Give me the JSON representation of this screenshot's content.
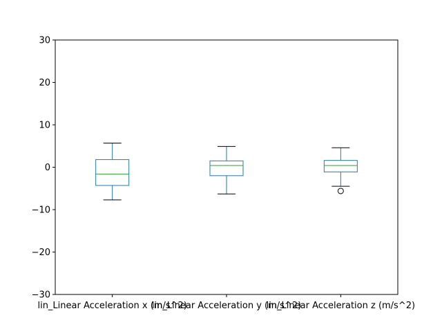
{
  "chart_data": {
    "type": "box",
    "title": "",
    "xlabel": "",
    "ylabel": "",
    "ylim": [
      -30,
      30
    ],
    "yticks": [
      -30,
      -20,
      -10,
      0,
      10,
      20,
      30
    ],
    "ytick_labels": [
      "−30",
      "−20",
      "−10",
      "0",
      "10",
      "20",
      "30"
    ],
    "grid": false,
    "categories": [
      "lin_Linear Acceleration x (m/s^2)",
      "lin_Linear Acceleration y (m/s^2)",
      "lin_Linear Acceleration z (m/s^2)"
    ],
    "boxes": [
      {
        "whisker_low": -7.7,
        "q1": -4.3,
        "median": -1.6,
        "q3": 1.8,
        "whisker_high": 5.7,
        "outliers": []
      },
      {
        "whisker_low": -6.3,
        "q1": -2.0,
        "median": 0.4,
        "q3": 1.5,
        "whisker_high": 4.9,
        "outliers": []
      },
      {
        "whisker_low": -4.5,
        "q1": -1.1,
        "median": 0.4,
        "q3": 1.6,
        "whisker_high": 4.6,
        "outliers": [
          -5.6
        ]
      }
    ],
    "colors": {
      "box": "#1f77b4",
      "median": "#2ca02c",
      "whisker_cap": "#000000",
      "outlier": "#000000",
      "axes": "#000000"
    }
  }
}
